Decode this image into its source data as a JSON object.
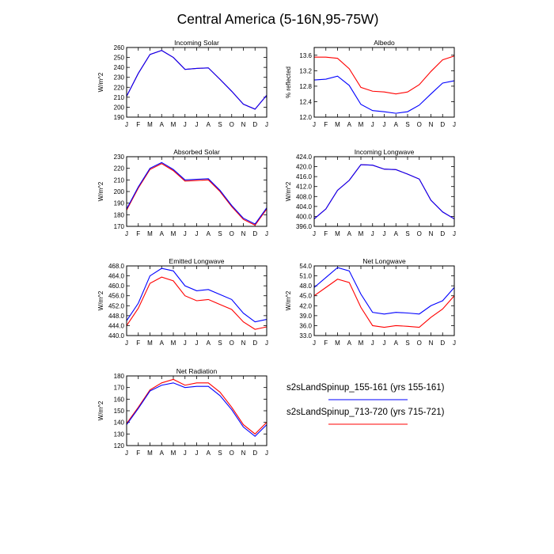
{
  "figure_title": "Central America (5-16N,95-75W)",
  "months": [
    "J",
    "F",
    "M",
    "A",
    "M",
    "J",
    "J",
    "A",
    "S",
    "O",
    "N",
    "D",
    "J"
  ],
  "colors": {
    "series1": "#0000ff",
    "series2": "#ff0000",
    "axis": "#000000"
  },
  "legend": [
    {
      "label": "s2sLandSpinup_155-161 (yrs 155-161)",
      "color": "#0000ff"
    },
    {
      "label": "s2sLandSpinup_713-720 (yrs 715-721)",
      "color": "#ff0000"
    }
  ],
  "chart_data": [
    {
      "type": "line",
      "title": "Incoming Solar",
      "ylabel": "W/m^2",
      "ylim": [
        190,
        260
      ],
      "yticks": [
        190,
        200,
        210,
        220,
        230,
        240,
        250,
        260
      ],
      "ytick_labels": [
        "190",
        "200",
        "210",
        "220",
        "230",
        "240",
        "250",
        "260"
      ],
      "categories": [
        "J",
        "F",
        "M",
        "A",
        "M",
        "J",
        "J",
        "A",
        "S",
        "O",
        "N",
        "D",
        "J"
      ],
      "series": [
        {
          "name": "s2sLandSpinup_155-161 (yrs 155-161)",
          "values": [
            211,
            234,
            253,
            257,
            250,
            238,
            239,
            239.5,
            228,
            216,
            203,
            198,
            212
          ]
        },
        {
          "name": "s2sLandSpinup_713-720 (yrs 715-721)",
          "values": [
            211,
            234,
            253,
            257,
            250,
            238,
            239,
            239.5,
            228,
            216,
            203,
            198,
            212
          ]
        }
      ]
    },
    {
      "type": "line",
      "title": "Albedo",
      "ylabel": "% reflected",
      "ylim": [
        12.0,
        13.8
      ],
      "yticks": [
        12.0,
        12.4,
        12.8,
        13.2,
        13.6
      ],
      "ytick_labels": [
        "12.0",
        "12.4",
        "12.8",
        "13.2",
        "13.6"
      ],
      "categories": [
        "J",
        "F",
        "M",
        "A",
        "M",
        "J",
        "J",
        "A",
        "S",
        "O",
        "N",
        "D",
        "J"
      ],
      "series": [
        {
          "name": "s2sLandSpinup_155-161 (yrs 155-161)",
          "values": [
            12.96,
            12.98,
            13.06,
            12.82,
            12.33,
            12.17,
            12.14,
            12.1,
            12.14,
            12.31,
            12.6,
            12.88,
            12.94
          ]
        },
        {
          "name": "s2sLandSpinup_713-720 (yrs 715-721)",
          "values": [
            13.55,
            13.55,
            13.52,
            13.25,
            12.77,
            12.67,
            12.65,
            12.6,
            12.65,
            12.84,
            13.18,
            13.48,
            13.58
          ]
        }
      ]
    },
    {
      "type": "line",
      "title": "Absorbed Solar",
      "ylabel": "W/m^2",
      "ylim": [
        170,
        230
      ],
      "yticks": [
        170,
        180,
        190,
        200,
        210,
        220,
        230
      ],
      "ytick_labels": [
        "170",
        "180",
        "190",
        "200",
        "210",
        "220",
        "230"
      ],
      "categories": [
        "J",
        "F",
        "M",
        "A",
        "M",
        "J",
        "J",
        "A",
        "S",
        "O",
        "N",
        "D",
        "J"
      ],
      "series": [
        {
          "name": "s2sLandSpinup_155-161 (yrs 155-161)",
          "values": [
            185,
            204,
            220,
            225,
            219,
            210,
            210.5,
            211,
            201,
            188,
            177,
            172,
            186
          ]
        },
        {
          "name": "s2sLandSpinup_713-720 (yrs 715-721)",
          "values": [
            184,
            203,
            219,
            224,
            218,
            209,
            209.5,
            210,
            200,
            187,
            176,
            171,
            185
          ]
        }
      ]
    },
    {
      "type": "line",
      "title": "Incoming Longwave",
      "ylabel": "W/m^2",
      "ylim": [
        396.0,
        424.0
      ],
      "yticks": [
        396,
        400,
        404,
        408,
        412,
        416,
        420,
        424
      ],
      "ytick_labels": [
        "396.0",
        "400.0",
        "404.0",
        "408.0",
        "412.0",
        "416.0",
        "420.0",
        "424.0"
      ],
      "categories": [
        "J",
        "F",
        "M",
        "A",
        "M",
        "J",
        "J",
        "A",
        "S",
        "O",
        "N",
        "D",
        "J"
      ],
      "series": [
        {
          "name": "s2sLandSpinup_155-161 (yrs 155-161)",
          "values": [
            399,
            403,
            410.5,
            414.5,
            420.8,
            420.6,
            419,
            418.8,
            417,
            415,
            406.5,
            401.8,
            399
          ]
        },
        {
          "name": "s2sLandSpinup_713-720 (yrs 715-721)",
          "values": [
            399,
            403,
            410.5,
            414.5,
            420.8,
            420.6,
            419,
            418.8,
            417,
            415,
            406.5,
            401.8,
            399
          ]
        }
      ]
    },
    {
      "type": "line",
      "title": "Emitted Longwave",
      "ylabel": "W/m^2",
      "ylim": [
        440.0,
        468.0
      ],
      "yticks": [
        440,
        444,
        448,
        452,
        456,
        460,
        464,
        468
      ],
      "ytick_labels": [
        "440.0",
        "444.0",
        "448.0",
        "452.0",
        "456.0",
        "460.0",
        "464.0",
        "468.0"
      ],
      "categories": [
        "J",
        "F",
        "M",
        "A",
        "M",
        "J",
        "J",
        "A",
        "S",
        "O",
        "N",
        "D",
        "J"
      ],
      "series": [
        {
          "name": "s2sLandSpinup_155-161 (yrs 155-161)",
          "values": [
            446,
            453,
            464,
            467,
            466,
            460,
            458,
            458.5,
            456.5,
            454.5,
            449,
            445.5,
            446.5
          ]
        },
        {
          "name": "s2sLandSpinup_713-720 (yrs 715-721)",
          "values": [
            444,
            451,
            461,
            463.5,
            462,
            456,
            454,
            454.5,
            452.5,
            450.5,
            445.5,
            442.5,
            443.5
          ]
        }
      ]
    },
    {
      "type": "line",
      "title": "Net Longwave",
      "ylabel": "W/m^2",
      "ylim": [
        33.0,
        54.0
      ],
      "yticks": [
        33,
        36,
        39,
        42,
        45,
        48,
        51,
        54
      ],
      "ytick_labels": [
        "33.0",
        "36.0",
        "39.0",
        "42.0",
        "45.0",
        "48.0",
        "51.0",
        "54.0"
      ],
      "categories": [
        "J",
        "F",
        "M",
        "A",
        "M",
        "J",
        "J",
        "A",
        "S",
        "O",
        "N",
        "D",
        "J"
      ],
      "series": [
        {
          "name": "s2sLandSpinup_155-161 (yrs 155-161)",
          "values": [
            47.5,
            50.5,
            53.5,
            52.5,
            45.5,
            40,
            39.5,
            40,
            39.8,
            39.5,
            42,
            43.5,
            47.5
          ]
        },
        {
          "name": "s2sLandSpinup_713-720 (yrs 715-721)",
          "values": [
            45,
            47.5,
            50,
            49,
            41.5,
            36,
            35.5,
            36,
            35.8,
            35.5,
            38.5,
            41,
            45
          ]
        }
      ]
    },
    {
      "type": "line",
      "title": "Net Radiation",
      "ylabel": "W/m^2",
      "ylim": [
        120,
        180
      ],
      "yticks": [
        120,
        130,
        140,
        150,
        160,
        170,
        180
      ],
      "ytick_labels": [
        "120",
        "130",
        "140",
        "150",
        "160",
        "170",
        "180"
      ],
      "categories": [
        "J",
        "F",
        "M",
        "A",
        "M",
        "J",
        "J",
        "A",
        "S",
        "O",
        "N",
        "D",
        "J"
      ],
      "series": [
        {
          "name": "s2sLandSpinup_155-161 (yrs 155-161)",
          "values": [
            138,
            152,
            167,
            172,
            174,
            170,
            171,
            171,
            163,
            151,
            136,
            128,
            138
          ]
        },
        {
          "name": "s2sLandSpinup_713-720 (yrs 715-721)",
          "values": [
            139,
            153,
            168,
            174,
            177,
            172,
            174,
            174,
            166,
            153,
            138,
            130,
            140
          ]
        }
      ]
    }
  ]
}
